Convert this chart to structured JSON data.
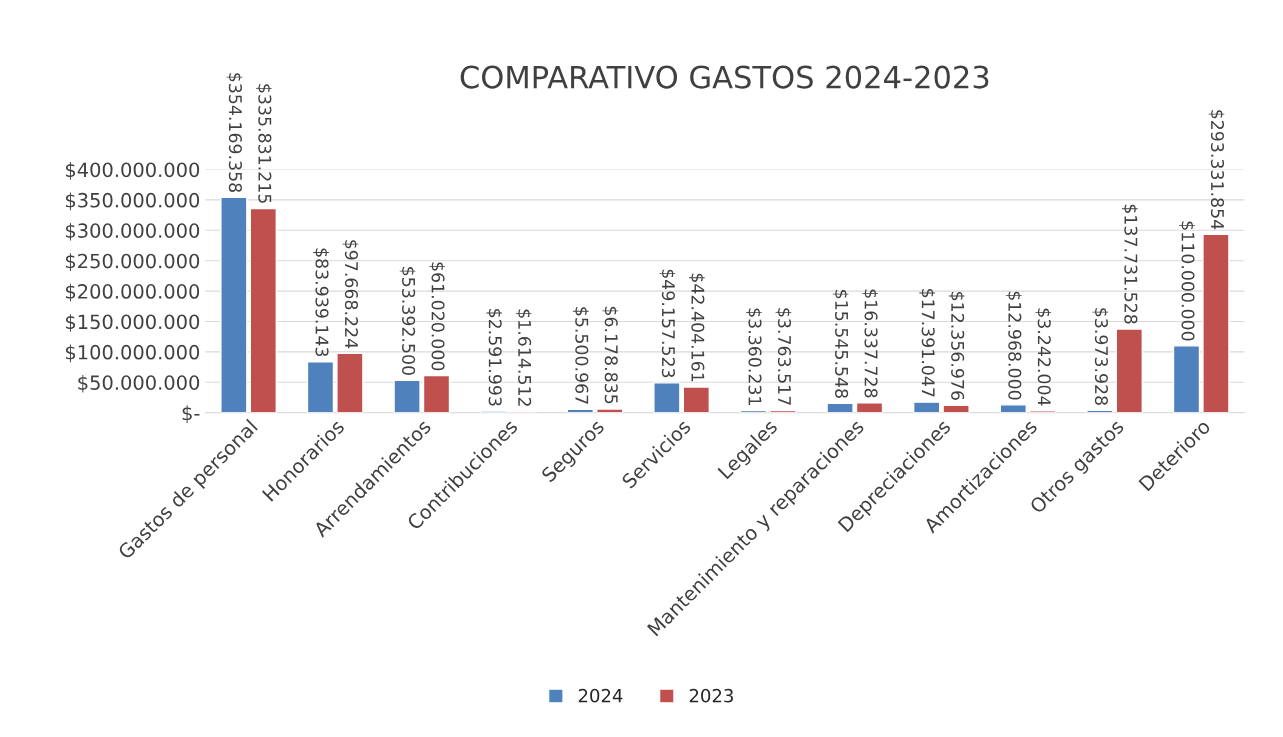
{
  "chart_data": {
    "type": "bar",
    "title": "COMPARATIVO GASTOS 2024-2023",
    "categories": [
      "Gastos de personal",
      "Honorarios",
      "Arrendamientos",
      "Contribuciones",
      "Seguros",
      "Servicios",
      "Legales",
      "Mantenimiento y reparaciones",
      "Depreciaciones",
      "Amortizaciones",
      "Otros gastos",
      "Deterioro"
    ],
    "series": [
      {
        "name": "2024",
        "color": "#4f81bd",
        "values": [
          354169358,
          83939143,
          53392500,
          2591993,
          5500967,
          49157523,
          3360231,
          15545548,
          17391047,
          12968000,
          3973928,
          110000000
        ],
        "value_labels": [
          "$354.169.358",
          "$83.939.143",
          "$53.392.500",
          "$2.591.993",
          "$5.500.967",
          "$49.157.523",
          "$3.360.231",
          "$15.545.548",
          "$17.391.047",
          "$12.968.000",
          "$3.973.928",
          "$110.000.000"
        ]
      },
      {
        "name": "2023",
        "color": "#c0504d",
        "values": [
          335831215,
          97668224,
          61020000,
          1614512,
          6178835,
          42404161,
          3763517,
          16337728,
          12356976,
          3242004,
          137731528,
          293331854
        ],
        "value_labels": [
          "$335.831.215",
          "$97.668.224",
          "$61.020.000",
          "$1.614.512",
          "$6.178.835",
          "$42.404.161",
          "$3.763.517",
          "$16.337.728",
          "$12.356.976",
          "$3.242.004",
          "$137.731.528",
          "$293.331.854"
        ]
      }
    ],
    "ylim": [
      0,
      400000000
    ],
    "yticks": [
      {
        "value": 0,
        "label": "$-"
      },
      {
        "value": 50000000,
        "label": "$50.000.000"
      },
      {
        "value": 100000000,
        "label": "$100.000.000"
      },
      {
        "value": 150000000,
        "label": "$150.000.000"
      },
      {
        "value": 200000000,
        "label": "$200.000.000"
      },
      {
        "value": 250000000,
        "label": "$250.000.000"
      },
      {
        "value": 300000000,
        "label": "$300.000.000"
      },
      {
        "value": 350000000,
        "label": "$350.000.000"
      },
      {
        "value": 400000000,
        "label": "$400.000.000"
      }
    ],
    "grid": "y",
    "legend": "bottom"
  }
}
